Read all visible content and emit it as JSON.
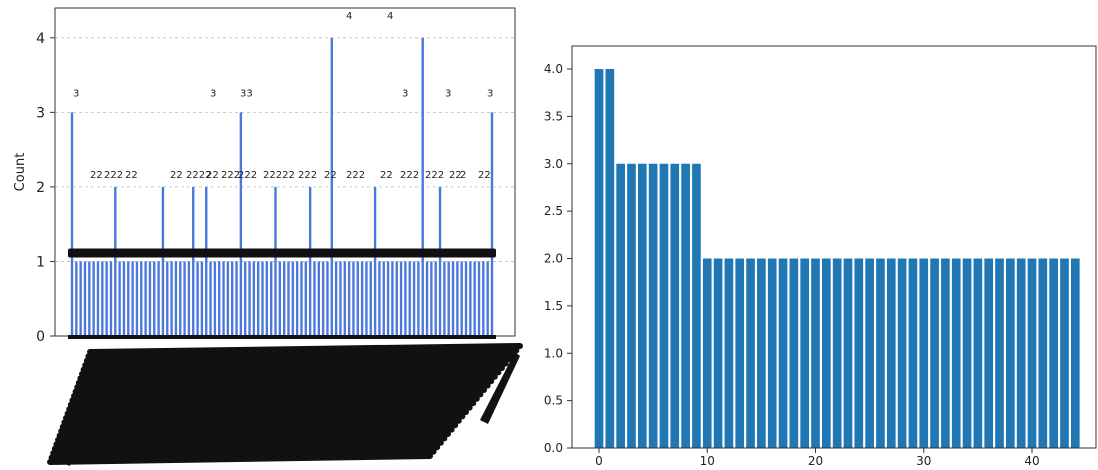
{
  "chart_data": [
    {
      "type": "bar",
      "ylabel": "Count",
      "ylim": [
        0,
        4.4
      ],
      "yticks": [
        0,
        1,
        2,
        3,
        4
      ],
      "grid": "horizontal-dashed",
      "bar_color": "#4c78dd",
      "note": "",
      "values": [
        3,
        1,
        1,
        1,
        1,
        1,
        1,
        1,
        1,
        1,
        2,
        1,
        1,
        1,
        1,
        1,
        1,
        1,
        1,
        1,
        1,
        2,
        1,
        1,
        1,
        1,
        1,
        1,
        2,
        1,
        1,
        2,
        1,
        1,
        1,
        1,
        1,
        1,
        1,
        3,
        1,
        1,
        1,
        1,
        1,
        1,
        1,
        2,
        1,
        1,
        1,
        1,
        1,
        1,
        1,
        2,
        1,
        1,
        1,
        1,
        4,
        1,
        1,
        1,
        1,
        1,
        1,
        1,
        1,
        1,
        2,
        1,
        1,
        1,
        1,
        1,
        1,
        1,
        1,
        1,
        1,
        4,
        1,
        1,
        1,
        2,
        1,
        1,
        1,
        1,
        1,
        1,
        1,
        1,
        1,
        1,
        1,
        3
      ],
      "bar_labels_top": [
        "4",
        "4"
      ],
      "bar_labels_three": [
        "3",
        "3",
        "33",
        "3",
        "3",
        "3"
      ],
      "bar_labels_two": [
        "22",
        "222",
        "22",
        "22",
        "2222",
        "22",
        "222",
        "222",
        "22222",
        "222",
        "22",
        "222",
        "22",
        "222",
        "222",
        "22",
        "2",
        "22",
        "222222",
        "22",
        "22"
      ]
    },
    {
      "type": "bar",
      "categories": [
        0,
        1,
        2,
        3,
        4,
        5,
        6,
        7,
        8,
        9,
        10,
        11,
        12,
        13,
        14,
        15,
        16,
        17,
        18,
        19,
        20,
        21,
        22,
        23,
        24,
        25,
        26,
        27,
        28,
        29,
        30,
        31,
        32,
        33,
        34,
        35,
        36,
        37,
        38,
        39,
        40,
        41,
        42,
        43,
        44
      ],
      "values": [
        4,
        4,
        3,
        3,
        3,
        3,
        3,
        3,
        3,
        3,
        2,
        2,
        2,
        2,
        2,
        2,
        2,
        2,
        2,
        2,
        2,
        2,
        2,
        2,
        2,
        2,
        2,
        2,
        2,
        2,
        2,
        2,
        2,
        2,
        2,
        2,
        2,
        2,
        2,
        2,
        2,
        2,
        2,
        2,
        2
      ],
      "xticks": [
        0,
        10,
        20,
        30,
        40
      ],
      "yticks": [
        "0.0",
        "0.5",
        "1.0",
        "1.5",
        "2.0",
        "2.5",
        "3.0",
        "3.5",
        "4.0"
      ],
      "ylim": [
        0,
        4.2
      ],
      "bar_color": "#1f77b4"
    }
  ]
}
